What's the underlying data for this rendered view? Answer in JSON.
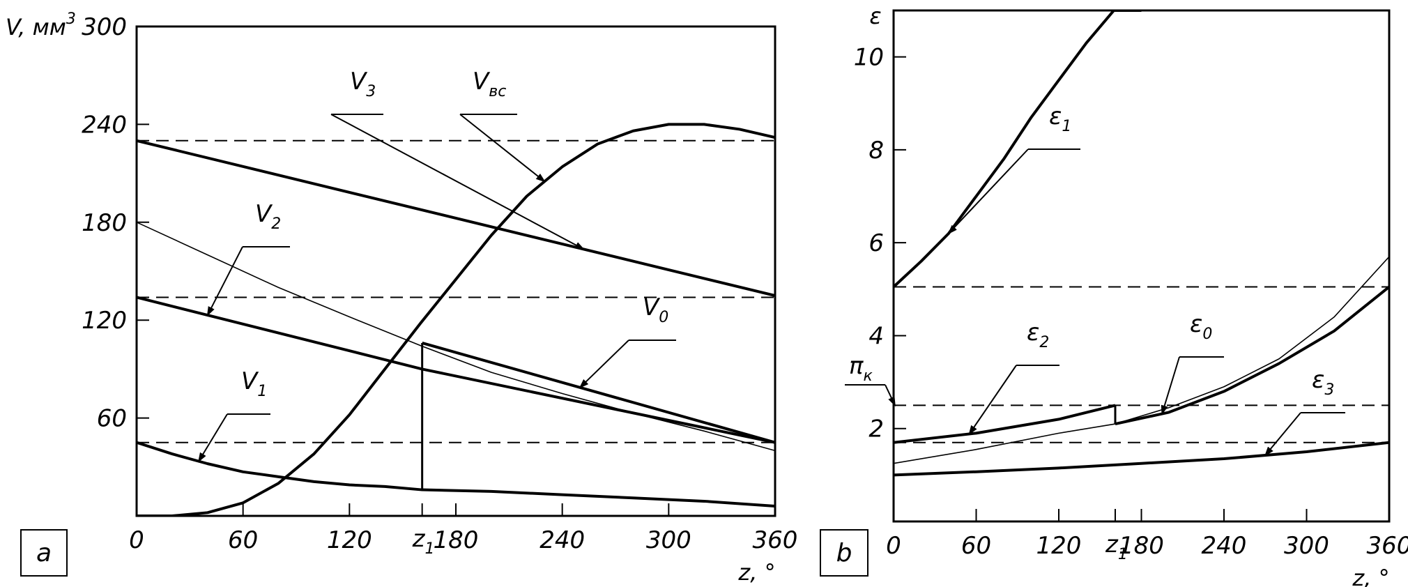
{
  "chart_data": [
    {
      "panel": "a",
      "type": "line",
      "ylabel": "V, мм",
      "ylabel_sup": "3",
      "xlabel": "z, °",
      "xlim": [
        0,
        360
      ],
      "ylim": [
        0,
        300
      ],
      "x_ticks": [
        "0",
        "60",
        "120",
        "180",
        "240",
        "300",
        "360"
      ],
      "z1_label": "z",
      "z1_sub": "1",
      "z1": 161,
      "y_ticks": [
        "60",
        "120",
        "180",
        "240",
        "300"
      ],
      "series": [
        {
          "label": "V",
          "sub": "3",
          "weight": "bold",
          "x": [
            0,
            360
          ],
          "y": [
            230,
            135
          ]
        },
        {
          "label": "V",
          "sub": "вс",
          "weight": "bold",
          "x": [
            0,
            20,
            40,
            60,
            80,
            100,
            120,
            140,
            160,
            180,
            200,
            220,
            240,
            260,
            280,
            300,
            320,
            340,
            360
          ],
          "y": [
            0,
            0,
            2,
            8,
            20,
            38,
            62,
            90,
            118,
            145,
            172,
            196,
            214,
            228,
            236,
            240,
            240,
            237,
            232
          ]
        },
        {
          "label": "V",
          "sub": "2",
          "weight": "bold",
          "x": [
            0,
            161,
            360
          ],
          "y": [
            134,
            90,
            45
          ]
        },
        {
          "label": "",
          "sub": "",
          "weight": "thin",
          "x": [
            0,
            40,
            80,
            120,
            161,
            200,
            240,
            280,
            320,
            360
          ],
          "y": [
            180,
            160,
            140,
            122,
            104,
            88,
            75,
            63,
            52,
            40
          ]
        },
        {
          "label": "V",
          "sub": "0",
          "weight": "bold",
          "x": [
            161,
            360
          ],
          "y": [
            106,
            45
          ]
        },
        {
          "label": "V",
          "sub": "1",
          "weight": "bold",
          "x": [
            0,
            20,
            40,
            60,
            80,
            100,
            120,
            140,
            161,
            200,
            240,
            280,
            320,
            360
          ],
          "y": [
            45,
            38,
            32,
            27,
            24,
            21,
            19,
            18,
            16,
            15,
            13,
            11,
            9,
            6
          ]
        }
      ],
      "dashed_y": [
        230,
        134,
        45
      ],
      "z1_segment": [
        16,
        106
      ]
    },
    {
      "panel": "b",
      "type": "line",
      "ylabel": "ε",
      "xlabel": "z, °",
      "xlim": [
        0,
        360
      ],
      "ylim": [
        0,
        11
      ],
      "x_ticks": [
        "0",
        "60",
        "120",
        "180",
        "240",
        "300",
        "360"
      ],
      "z1_label": "z",
      "z1_sub": "1",
      "z1": 161,
      "y_ticks": [
        "2",
        "4",
        "6",
        "8",
        "10"
      ],
      "pi_label": "π",
      "pi_sub": "к",
      "series": [
        {
          "label": "ε",
          "sub": "1",
          "weight": "bold",
          "x": [
            0,
            20,
            40,
            60,
            80,
            100,
            120,
            140,
            160,
            170,
            180
          ],
          "y": [
            5.05,
            5.6,
            6.2,
            7.0,
            7.8,
            8.7,
            9.5,
            10.3,
            11.0,
            11.0,
            11.0
          ]
        },
        {
          "label": "ε",
          "sub": "2",
          "weight": "bold",
          "x": [
            0,
            60,
            120,
            161
          ],
          "y": [
            1.7,
            1.9,
            2.2,
            2.5
          ]
        },
        {
          "label": "",
          "sub": "",
          "weight": "thin",
          "x": [
            0,
            60,
            120,
            161,
            200,
            240,
            280,
            320,
            360
          ],
          "y": [
            1.25,
            1.55,
            1.9,
            2.1,
            2.45,
            2.9,
            3.5,
            4.4,
            5.7
          ]
        },
        {
          "label": "ε",
          "sub": "0",
          "weight": "bold",
          "x": [
            161,
            200,
            240,
            280,
            320,
            360
          ],
          "y": [
            2.1,
            2.35,
            2.8,
            3.4,
            4.1,
            5.05
          ]
        },
        {
          "label": "ε",
          "sub": "3",
          "weight": "bold",
          "x": [
            0,
            60,
            120,
            180,
            240,
            300,
            360
          ],
          "y": [
            1.0,
            1.07,
            1.15,
            1.25,
            1.35,
            1.5,
            1.7
          ]
        }
      ],
      "dashed_y": [
        5.05,
        2.5,
        1.7
      ],
      "z1_segment": [
        2.1,
        2.5
      ]
    }
  ],
  "panels": {
    "a": "a",
    "b": "b"
  }
}
